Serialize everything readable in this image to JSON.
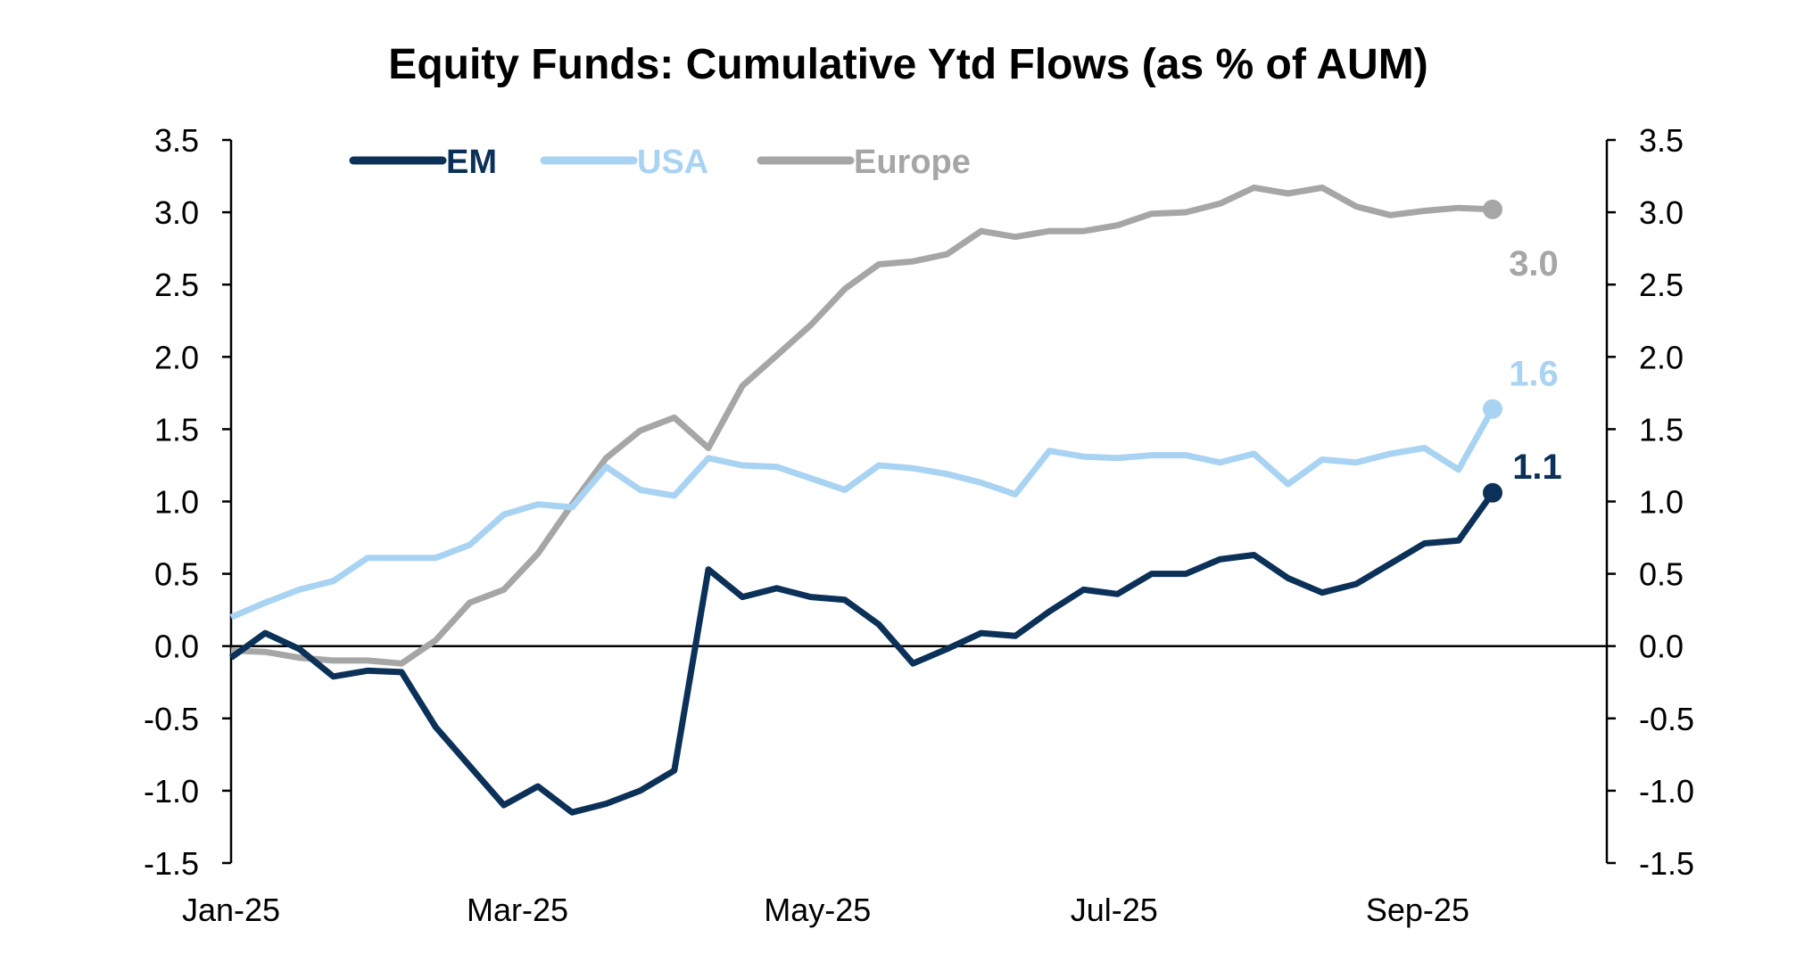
{
  "chart_data": {
    "type": "line",
    "title": "Equity Funds: Cumulative Ytd Flows (as % of AUM)",
    "xlabel": "",
    "ylabel": "",
    "ylim": [
      -1.5,
      3.5
    ],
    "yticks": [
      "3.5",
      "3.0",
      "2.5",
      "2.0",
      "1.5",
      "1.0",
      "0.5",
      "0.0",
      "-0.5",
      "-1.0",
      "-1.5"
    ],
    "ytick_values": [
      3.5,
      3.0,
      2.5,
      2.0,
      1.5,
      1.0,
      0.5,
      0.0,
      -0.5,
      -1.0,
      -1.5
    ],
    "xticks": [
      {
        "label": "Jan-25",
        "week": 0
      },
      {
        "label": "Mar-25",
        "week": 8.4
      },
      {
        "label": "May-25",
        "week": 17.2
      },
      {
        "label": "Jul-25",
        "week": 25.9
      },
      {
        "label": "Sep-25",
        "week": 34.8
      }
    ],
    "n_points": 38,
    "legend_position": "top-left",
    "grid": false,
    "series": [
      {
        "name": "EM",
        "color": "#0b3158",
        "end_label": "1.1",
        "values": [
          -0.08,
          0.09,
          -0.02,
          -0.21,
          -0.17,
          -0.18,
          -0.56,
          -0.83,
          -1.1,
          -0.97,
          -1.15,
          -1.09,
          -1.0,
          -0.86,
          0.53,
          0.34,
          0.4,
          0.34,
          0.32,
          0.15,
          -0.12,
          -0.02,
          0.09,
          0.07,
          0.24,
          0.39,
          0.36,
          0.5,
          0.5,
          0.6,
          0.63,
          0.47,
          0.37,
          0.43,
          0.57,
          0.71,
          0.73,
          1.06
        ]
      },
      {
        "name": "USA",
        "color": "#a9d3f2",
        "end_label": "1.6",
        "values": [
          0.2,
          0.3,
          0.39,
          0.45,
          0.61,
          0.61,
          0.61,
          0.7,
          0.91,
          0.98,
          0.96,
          1.24,
          1.08,
          1.04,
          1.3,
          1.25,
          1.24,
          1.16,
          1.08,
          1.25,
          1.23,
          1.19,
          1.13,
          1.05,
          1.35,
          1.31,
          1.3,
          1.32,
          1.32,
          1.27,
          1.33,
          1.12,
          1.29,
          1.27,
          1.33,
          1.37,
          1.22,
          1.64
        ]
      },
      {
        "name": "Europe",
        "color": "#a6a6a6",
        "end_label": "3.0",
        "values": [
          -0.03,
          -0.04,
          -0.08,
          -0.1,
          -0.1,
          -0.12,
          0.04,
          0.3,
          0.39,
          0.64,
          0.98,
          1.3,
          1.49,
          1.58,
          1.37,
          1.8,
          2.01,
          2.22,
          2.47,
          2.64,
          2.66,
          2.71,
          2.87,
          2.83,
          2.87,
          2.87,
          2.91,
          2.99,
          3.0,
          3.06,
          3.17,
          3.13,
          3.17,
          3.04,
          2.98,
          3.01,
          3.03,
          3.02
        ]
      }
    ]
  }
}
